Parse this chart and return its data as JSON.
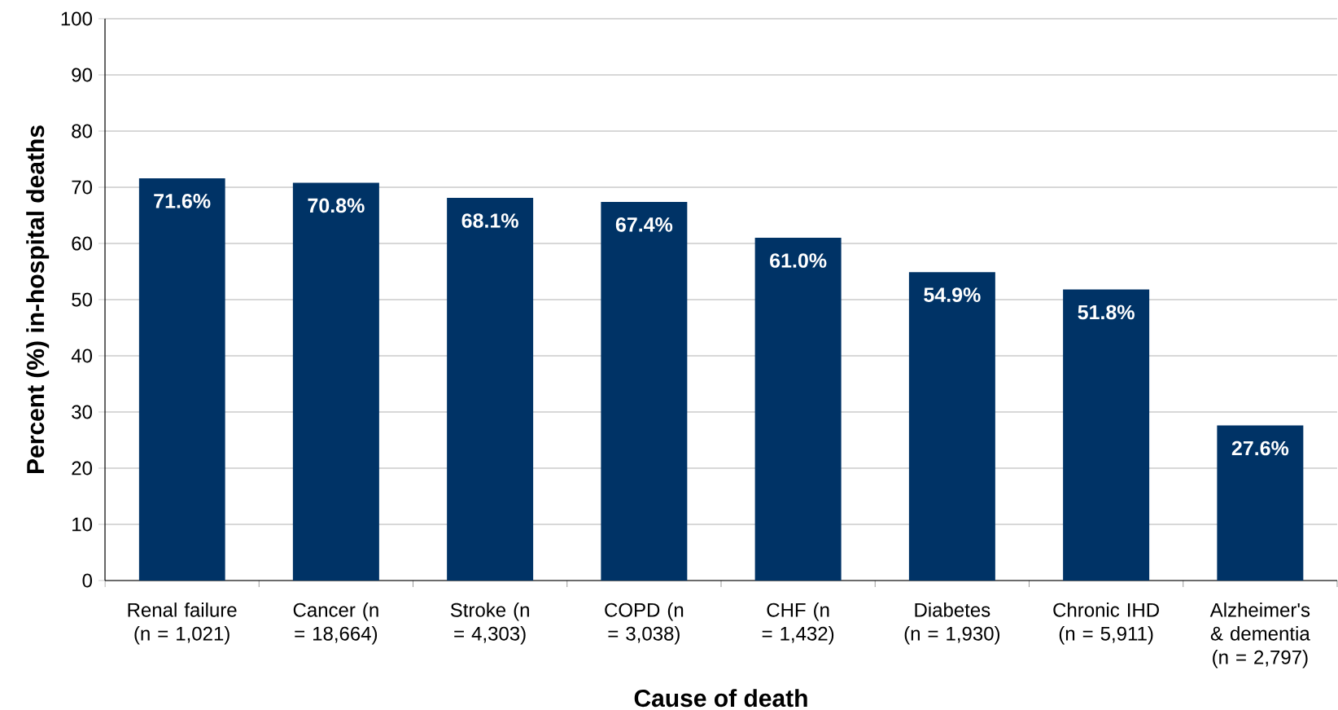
{
  "chart_data": {
    "type": "bar",
    "xlabel": "Cause of death",
    "ylabel": "Percent (%) in-hospital deaths",
    "categories": [
      "Renal failure (n = 1,021)",
      "Cancer (n = 18,664)",
      "Stroke (n = 4,303)",
      "COPD (n = 3,038)",
      "CHF (n = 1,432)",
      "Diabetes (n = 1,930)",
      "Chronic IHD (n = 5,911)",
      "Alzheimer's & dementia (n = 2,797)"
    ],
    "values": [
      71.6,
      70.8,
      68.1,
      67.4,
      61.0,
      54.9,
      51.8,
      27.6
    ],
    "value_labels": [
      "71.6%",
      "70.8%",
      "68.1%",
      "67.4%",
      "61.0%",
      "54.9%",
      "51.8%",
      "27.6%"
    ],
    "color": "#003366",
    "ylim": [
      0,
      100
    ],
    "yticks": [
      0,
      10,
      20,
      30,
      40,
      50,
      60,
      70,
      80,
      90,
      100
    ],
    "grid": "y"
  }
}
